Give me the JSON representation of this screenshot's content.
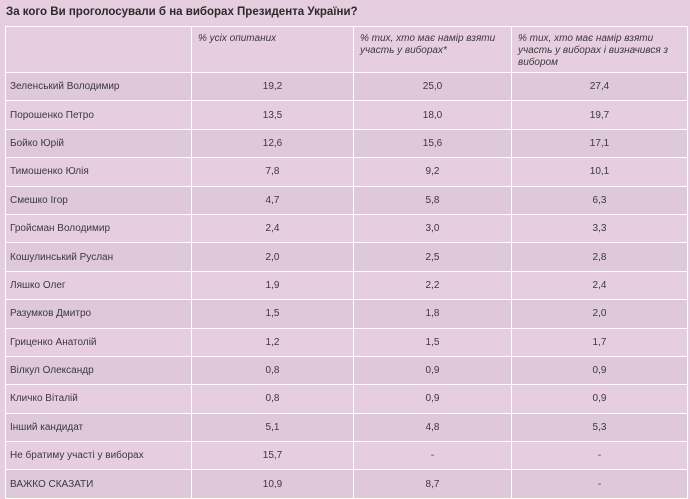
{
  "title": "За кого Ви проголосували б на виборах Президента України?",
  "columns": [
    "",
    "% усіх опитаних",
    "% тих, хто має намір взяти участь у виборах*",
    "% тих, хто має намір взяти участь у виборах і визначився з вибором"
  ],
  "rows": [
    {
      "name": "Зеленський Володимир",
      "all": "19,2",
      "voters": "25,0",
      "decided": "27,4"
    },
    {
      "name": "Порошенко Петро",
      "all": "13,5",
      "voters": "18,0",
      "decided": "19,7"
    },
    {
      "name": "Бойко Юрій",
      "all": "12,6",
      "voters": "15,6",
      "decided": "17,1"
    },
    {
      "name": "Тимошенко Юлія",
      "all": "7,8",
      "voters": "9,2",
      "decided": "10,1"
    },
    {
      "name": "Смешко Ігор",
      "all": "4,7",
      "voters": "5,8",
      "decided": "6,3"
    },
    {
      "name": "Гройсман Володимир",
      "all": "2,4",
      "voters": "3,0",
      "decided": "3,3"
    },
    {
      "name": "Кошулинський Руслан",
      "all": "2,0",
      "voters": "2,5",
      "decided": "2,8"
    },
    {
      "name": "Ляшко Олег",
      "all": "1,9",
      "voters": "2,2",
      "decided": "2,4"
    },
    {
      "name": "Разумков Дмитро",
      "all": "1,5",
      "voters": "1,8",
      "decided": "2,0"
    },
    {
      "name": "Гриценко Анатолій",
      "all": "1,2",
      "voters": "1,5",
      "decided": "1,7"
    },
    {
      "name": "Вілкул Олександр",
      "all": "0,8",
      "voters": "0,9",
      "decided": "0,9"
    },
    {
      "name": "Кличко Віталій",
      "all": "0,8",
      "voters": "0,9",
      "decided": "0,9"
    },
    {
      "name": "Інший кандидат",
      "all": "5,1",
      "voters": "4,8",
      "decided": "5,3"
    },
    {
      "name": "Не братиму участі у виборах",
      "all": "15,7",
      "voters": "-",
      "decided": "-"
    },
    {
      "name": "ВАЖКО СКАЗАТИ",
      "all": "10,9",
      "voters": "8,7",
      "decided": "-"
    }
  ]
}
